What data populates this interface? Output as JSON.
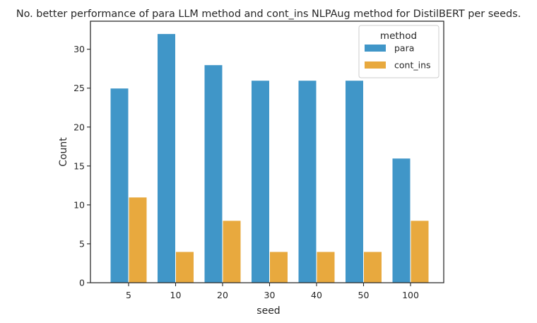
{
  "chart_data": {
    "type": "bar",
    "title": "No. better performance of para LLM method and cont_ins NLPAug method for DistilBERT per seeds.",
    "xlabel": "seed",
    "ylabel": "Count",
    "categories": [
      "5",
      "10",
      "20",
      "30",
      "40",
      "50",
      "100"
    ],
    "series": [
      {
        "name": "para",
        "values": [
          25,
          32,
          28,
          26,
          26,
          26,
          16
        ],
        "color": "#4096c8"
      },
      {
        "name": "cont_ins",
        "values": [
          11,
          4,
          8,
          4,
          4,
          4,
          8
        ],
        "color": "#e8a93e"
      }
    ],
    "ylim": [
      0,
      33.6
    ],
    "yticks": [
      0,
      5,
      10,
      15,
      20,
      25,
      30
    ],
    "legend": {
      "title": "method",
      "placement": "top-right"
    },
    "grid": false
  }
}
